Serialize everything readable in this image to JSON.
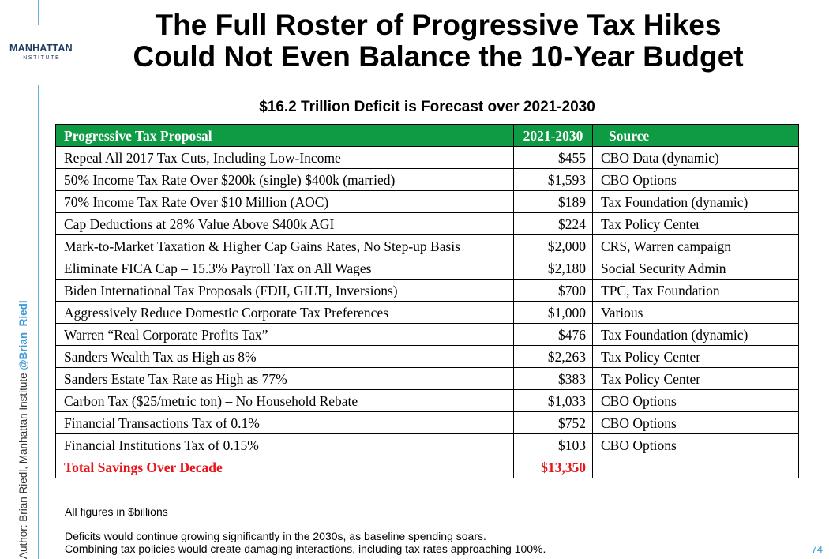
{
  "logo": {
    "line1": "MANHATTAN",
    "line2": "INSTITUTE"
  },
  "title": {
    "line1": "The Full Roster of Progressive Tax Hikes",
    "line2": "Could Not Even Balance the 10-Year Budget"
  },
  "subtitle": "$16.2 Trillion Deficit is Forecast over 2021-2030",
  "table": {
    "headers": {
      "proposal": "Progressive Tax Proposal",
      "amount": "2021-2030",
      "source": "Source"
    },
    "rows": [
      {
        "proposal": "Repeal All 2017 Tax Cuts, Including Low-Income",
        "amount": "$455",
        "source": "CBO Data (dynamic)"
      },
      {
        "proposal": "50% Income Tax Rate Over $200k (single) $400k (married)",
        "amount": "$1,593",
        "source": "CBO Options"
      },
      {
        "proposal": "70% Income Tax Rate Over $10 Million (AOC)",
        "amount": "$189",
        "source": "Tax Foundation (dynamic)"
      },
      {
        "proposal": "Cap Deductions at 28% Value Above $400k AGI",
        "amount": "$224",
        "source": "Tax Policy Center"
      },
      {
        "proposal": "Mark-to-Market Taxation & Higher Cap Gains Rates, No Step-up Basis",
        "amount": "$2,000",
        "source": "CRS, Warren campaign"
      },
      {
        "proposal": "Eliminate FICA Cap – 15.3% Payroll Tax on All Wages",
        "amount": "$2,180",
        "source": "Social Security Admin"
      },
      {
        "proposal": "Biden International Tax Proposals (FDII, GILTI, Inversions)",
        "amount": "$700",
        "source": "TPC, Tax Foundation"
      },
      {
        "proposal": "Aggressively Reduce Domestic Corporate Tax Preferences",
        "amount": "$1,000",
        "source": "Various"
      },
      {
        "proposal": "Warren “Real Corporate Profits Tax”",
        "amount": "$476",
        "source": "Tax Foundation (dynamic)"
      },
      {
        "proposal": "Sanders Wealth Tax as High as 8%",
        "amount": "$2,263",
        "source": "Tax Policy Center"
      },
      {
        "proposal": "Sanders Estate Tax Rate as High as 77%",
        "amount": "$383",
        "source": "Tax Policy Center"
      },
      {
        "proposal": "Carbon Tax ($25/metric ton) – No Household Rebate",
        "amount": "$1,033",
        "source": "CBO Options"
      },
      {
        "proposal": "Financial Transactions Tax of 0.1%",
        "amount": "$752",
        "source": "CBO Options"
      },
      {
        "proposal": "Financial Institutions Tax of 0.15%",
        "amount": "$103",
        "source": "CBO Options"
      }
    ],
    "total": {
      "label": "Total Savings Over Decade",
      "amount": "$13,350",
      "source": ""
    }
  },
  "notes": {
    "units": "All figures in $billions",
    "line1": "Deficits would continue growing significantly in the 2030s, as baseline spending soars.",
    "line2": "Combining tax policies would create damaging interactions, including tax rates approaching 100%."
  },
  "credit": {
    "author": "Author: Brian Riedl, Manhattan Institute",
    "handle": "@Brian_Riedl"
  },
  "page_number": "74",
  "colors": {
    "header_green": "#0f9a44",
    "total_red": "#e8161b",
    "accent_blue": "#3d9bd6"
  }
}
